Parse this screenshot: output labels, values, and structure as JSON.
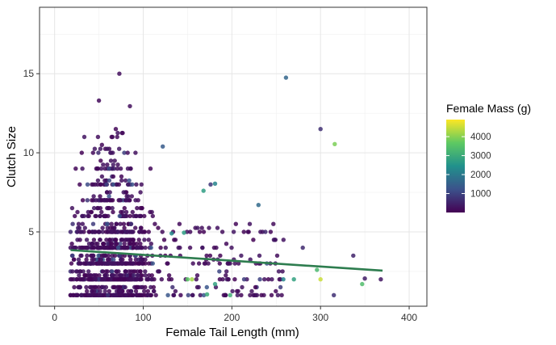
{
  "chart_data": {
    "type": "scatter",
    "xlabel": "Female Tail Length (mm)",
    "ylabel": "Clutch Size",
    "xlim": [
      -17,
      420
    ],
    "ylim": [
      0.3,
      19.2
    ],
    "x_ticks": [
      0,
      100,
      200,
      300,
      400
    ],
    "y_ticks": [
      5,
      10,
      15
    ],
    "grid": true,
    "theme": "bw",
    "colorbar": {
      "title": "Female Mass (g)",
      "ticks": [
        1000,
        2000,
        3000,
        4000
      ],
      "range": [
        0,
        4900
      ],
      "palette": "viridis"
    },
    "trend_line": {
      "x": [
        18,
        370
      ],
      "y": [
        3.85,
        2.55
      ],
      "color": "#2e7d4f"
    },
    "highlighted_points": [
      {
        "x": 73,
        "y": 15.0,
        "mass": 200
      },
      {
        "x": 261,
        "y": 14.75,
        "mass": 1600
      },
      {
        "x": 50,
        "y": 13.3,
        "mass": 150
      },
      {
        "x": 85,
        "y": 12.95,
        "mass": 200
      },
      {
        "x": 300,
        "y": 11.5,
        "mass": 700
      },
      {
        "x": 316,
        "y": 10.55,
        "mass": 3900
      },
      {
        "x": 122,
        "y": 10.4,
        "mass": 1400
      },
      {
        "x": 181,
        "y": 8.05,
        "mass": 2200
      },
      {
        "x": 176,
        "y": 8.0,
        "mass": 800
      },
      {
        "x": 168,
        "y": 7.6,
        "mass": 2700
      },
      {
        "x": 230,
        "y": 6.7,
        "mass": 1700
      },
      {
        "x": 337,
        "y": 3.5,
        "mass": 500
      },
      {
        "x": 350,
        "y": 2.05,
        "mass": 400
      },
      {
        "x": 347,
        "y": 1.7,
        "mass": 3400
      },
      {
        "x": 368,
        "y": 2.0,
        "mass": 300
      },
      {
        "x": 300,
        "y": 2.0,
        "mass": 4500
      },
      {
        "x": 296,
        "y": 2.6,
        "mass": 3300
      },
      {
        "x": 150,
        "y": 2.0,
        "mass": 3600
      },
      {
        "x": 155,
        "y": 2.0,
        "mass": 4200
      },
      {
        "x": 146,
        "y": 4.95,
        "mass": 2700
      },
      {
        "x": 132,
        "y": 4.9,
        "mass": 2300
      },
      {
        "x": 181,
        "y": 1.7,
        "mass": 2800
      },
      {
        "x": 172,
        "y": 1.05,
        "mass": 3000
      },
      {
        "x": 198,
        "y": 1.0,
        "mass": 3100
      },
      {
        "x": 258,
        "y": 2.0,
        "mass": 2200
      },
      {
        "x": 270,
        "y": 2.0,
        "mass": 2800
      },
      {
        "x": 315,
        "y": 1.0,
        "mass": 700
      },
      {
        "x": 280,
        "y": 4.0,
        "mass": 600
      }
    ],
    "cluster": {
      "description_free": true,
      "x_center": 65,
      "x_spread": 45,
      "y_levels": [
        1,
        2,
        3,
        4,
        5,
        6,
        7,
        8,
        9,
        10,
        11
      ],
      "mass_typical": 150
    }
  }
}
